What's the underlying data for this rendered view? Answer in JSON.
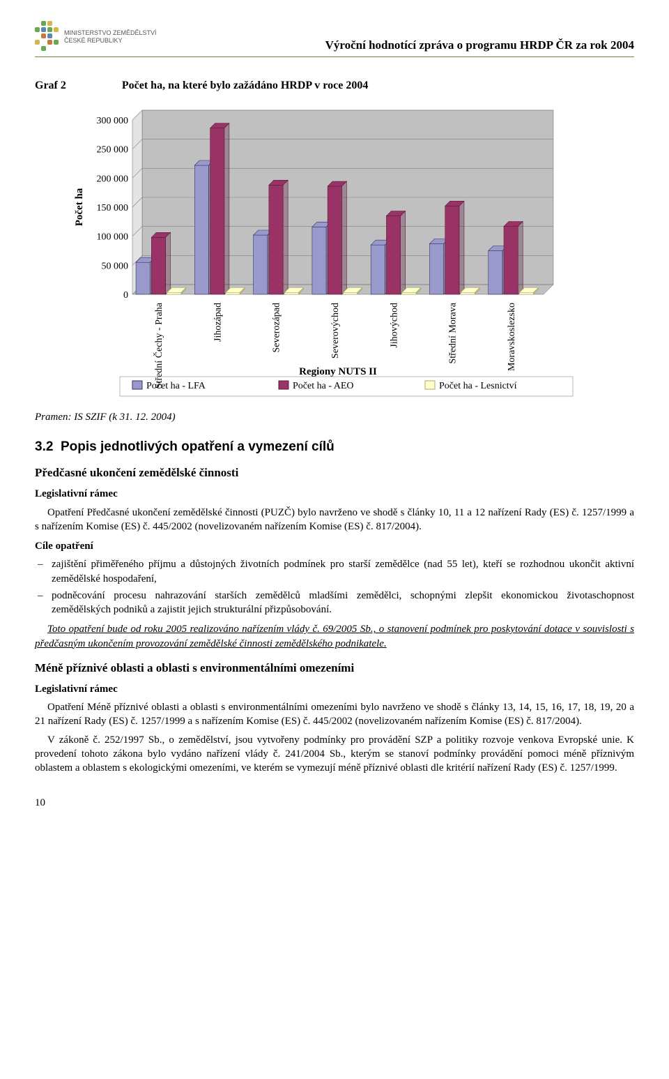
{
  "header": {
    "ministry_line1": "MINISTERSTVO ZEMĚDĚLSTVÍ",
    "ministry_line2": "ČESKÉ REPUBLIKY",
    "report_title": "Výroční hodnotící zpráva o programu HRDP ČR za rok 2004"
  },
  "graf": {
    "label": "Graf 2",
    "title": "Počet ha, na které bylo zažádáno HRDP v roce 2004",
    "y_label": "Počet ha",
    "x_label": "Regiony NUTS II",
    "y_ticks": [
      0,
      50000,
      100000,
      150000,
      200000,
      250000,
      300000
    ],
    "y_tick_labels": [
      "0",
      "50 000",
      "100 000",
      "150 000",
      "200 000",
      "250 000",
      "300 000"
    ],
    "ylim": [
      0,
      300000
    ],
    "categories": [
      "Střední Čechy - Praha",
      "Jihozápad",
      "Severozápad",
      "Severovýchod",
      "Jihovýchod",
      "Střední Morava",
      "Moravskoslezsko"
    ],
    "series": [
      {
        "name": "Počet ha - LFA",
        "legend": "Počet ha -  LFA",
        "color": "#9999cc",
        "stroke": "#333366",
        "values": [
          55000,
          222000,
          102000,
          116000,
          85000,
          87000,
          75000
        ]
      },
      {
        "name": "Počet ha - AEO",
        "legend": "Počet ha -  AEO",
        "color": "#993366",
        "stroke": "#5a1d3c",
        "values": [
          98000,
          286000,
          188000,
          186000,
          135000,
          152000,
          117000
        ]
      },
      {
        "name": "Počet ha - Lesnictví",
        "legend": "Počet ha -  Lesnictví",
        "color": "#ffffcc",
        "stroke": "#aaaa66",
        "values": [
          3000,
          3000,
          3000,
          3000,
          3000,
          3000,
          3000
        ]
      }
    ],
    "plot_bg": "#c0c0c0",
    "grid_color": "#808080",
    "panel_color": "#e4e4e4",
    "bar_width": 0.24,
    "font_family": "Times New Roman",
    "tick_fontsize": 14,
    "axis_label_fontsize": 15
  },
  "source": "Pramen: IS SZIF (k 31. 12. 2004)",
  "section_32": {
    "number": "3.2",
    "title": "Popis jednotlivých opatření a vymezení cílů",
    "sub1": {
      "heading": "Předčasné ukončení zemědělské činnosti",
      "leg_label": "Legislativní rámec",
      "leg_text": "Opatření Předčasné ukončení zemědělské činnosti (PUZČ) bylo navrženo ve shodě s články 10, 11 a 12 nařízení Rady (ES) č. 1257/1999 a s nařízením Komise (ES) č. 445/2002 (novelizovaném nařízením Komise (ES) č. 817/2004).",
      "cile_label": "Cíle opatření",
      "cile_items": [
        "zajištění přiměřeného příjmu a důstojných životních podmínek pro starší zemědělce (nad 55 let), kteří se rozhodnou ukončit aktivní zemědělské hospodaření,",
        "podněcování procesu nahrazování starších zemědělců mladšími zemědělci, schopnými zlepšit ekonomickou životaschopnost zemědělských podniků a zajistit jejich strukturální přizpůsobování."
      ],
      "note": "Toto opatření bude od roku 2005 realizováno nařízením vlády č. 69/2005 Sb., o stanovení podmínek pro poskytování dotace v souvislosti s předčasným ukončením provozování zemědělské činnosti zemědělského podnikatele."
    },
    "sub2": {
      "heading": "Méně příznivé oblasti a oblasti s environmentálními omezeními",
      "leg_label": "Legislativní rámec",
      "p1": "Opatření Méně příznivé oblasti a oblasti s environmentálními omezeními bylo navrženo ve shodě s články 13, 14, 15, 16, 17, 18, 19, 20 a 21 nařízení Rady (ES) č. 1257/1999 a s nařízením Komise (ES) č. 445/2002 (novelizovaném nařízením Komise (ES) č. 817/2004).",
      "p2": "V zákoně č. 252/1997 Sb., o zemědělství, jsou vytvořeny podmínky pro provádění SZP a politiky rozvoje venkova Evropské unie. K provedení tohoto zákona bylo vydáno nařízení vlády č. 241/2004 Sb., kterým se stanoví podmínky provádění pomoci méně příznivým oblastem a oblastem s ekologickými omezeními, ve kterém se vymezují méně příznivé oblasti dle kritérií nařízení Rady (ES) č. 1257/1999."
    }
  },
  "page_number": "10"
}
